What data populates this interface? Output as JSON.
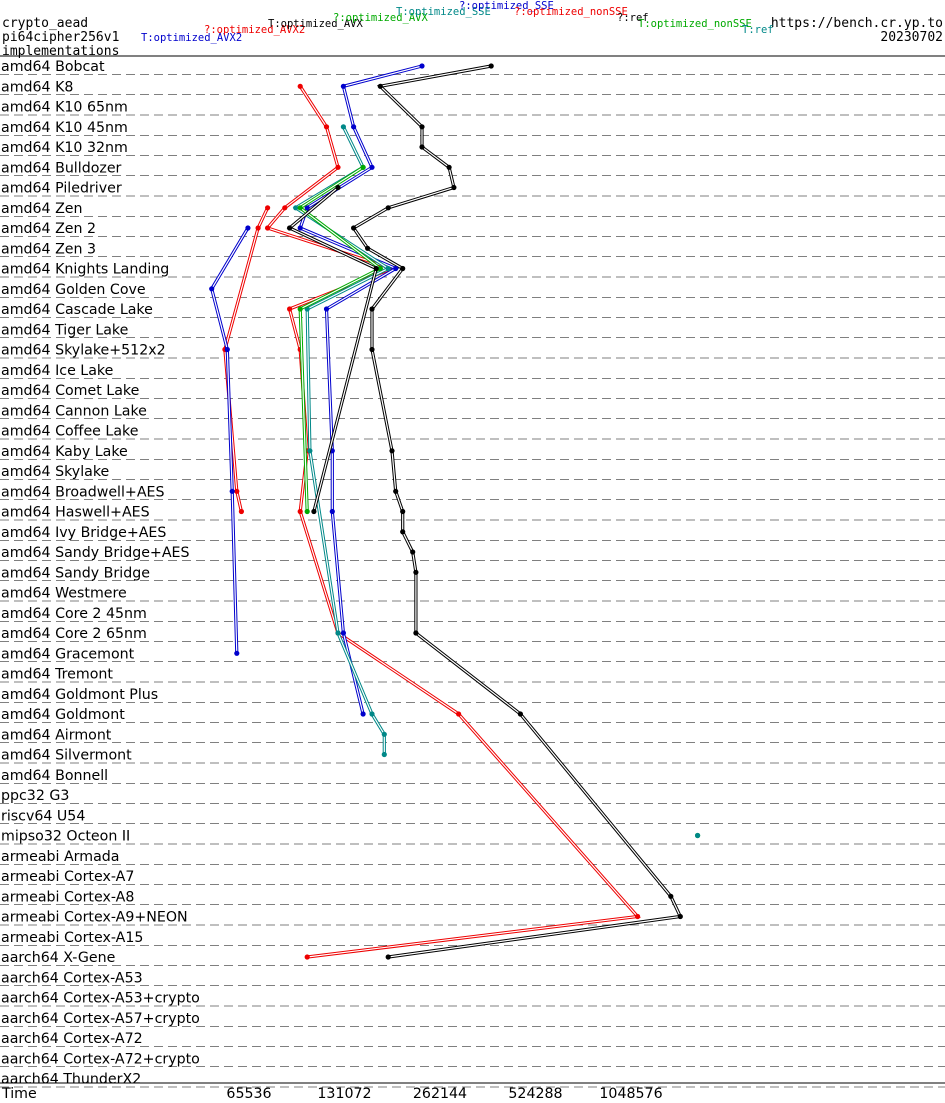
{
  "header": {
    "lines": [
      "crypto_aead",
      "pi64cipher256v1",
      "implementations"
    ],
    "url": "https://bench.cr.yp.to",
    "date": "20230702"
  },
  "legend": [
    {
      "label": "T:optimized_AVX2",
      "color": "#0000cc"
    },
    {
      "label": "?:optimized_AVX2",
      "color": "#ee0000"
    },
    {
      "label": "T:optimized_AVX",
      "color": "#000000"
    },
    {
      "label": "?:optimized_AVX",
      "color": "#00aa00"
    },
    {
      "label": "T:optimized_SSE",
      "color": "#008888"
    },
    {
      "label": "?:optimized_SSE",
      "color": "#0000cc"
    },
    {
      "label": "?:optimized_nonSSE",
      "color": "#ee0000"
    },
    {
      "label": "?:ref",
      "color": "#000000"
    },
    {
      "label": "T:optimized_nonSSE",
      "color": "#00aa00"
    },
    {
      "label": "T:ref",
      "color": "#008888"
    }
  ],
  "chart_data": {
    "type": "line",
    "orientation": "horizontal categories, log-scale time axis",
    "xlabel": "Time",
    "x_scale": "log2",
    "x_ticks": [
      65536,
      131072,
      262144,
      524288,
      1048576
    ],
    "categories": [
      "amd64 Bobcat",
      "amd64 K8",
      "amd64 K10 65nm",
      "amd64 K10 45nm",
      "amd64 K10 32nm",
      "amd64 Bulldozer",
      "amd64 Piledriver",
      "amd64 Zen",
      "amd64 Zen 2",
      "amd64 Zen 3",
      "amd64 Knights Landing",
      "amd64 Golden Cove",
      "amd64 Cascade Lake",
      "amd64 Tiger Lake",
      "amd64 Skylake+512x2",
      "amd64 Ice Lake",
      "amd64 Comet Lake",
      "amd64 Cannon Lake",
      "amd64 Coffee Lake",
      "amd64 Kaby Lake",
      "amd64 Skylake",
      "amd64 Broadwell+AES",
      "amd64 Haswell+AES",
      "amd64 Ivy Bridge+AES",
      "amd64 Sandy Bridge+AES",
      "amd64 Sandy Bridge",
      "amd64 Westmere",
      "amd64 Core 2 45nm",
      "amd64 Core 2 65nm",
      "amd64 Gracemont",
      "amd64 Tremont",
      "amd64 Goldmont Plus",
      "amd64 Goldmont",
      "amd64 Airmont",
      "amd64 Silvermont",
      "amd64 Bonnell",
      "ppc32 G3",
      "riscv64 U54",
      "mipso32 Octeon II",
      "armeabi Armada",
      "armeabi Cortex-A7",
      "armeabi Cortex-A8",
      "armeabi Cortex-A9+NEON",
      "armeabi Cortex-A15",
      "aarch64 X-Gene",
      "aarch64 Cortex-A53",
      "aarch64 Cortex-A53+crypto",
      "aarch64 Cortex-A57+crypto",
      "aarch64 Cortex-A72",
      "aarch64 Cortex-A72+crypto",
      "aarch64 ThunderX2"
    ],
    "series": [
      {
        "name": "?:ref",
        "color": "#000000",
        "points": [
          [
            "amd64 Bobcat",
            380000
          ],
          [
            "amd64 K8",
            170000
          ],
          [
            "amd64 K10 45nm",
            230000
          ],
          [
            "amd64 K10 32nm",
            230000
          ],
          [
            "amd64 Bulldozer",
            280000
          ],
          [
            "amd64 Piledriver",
            290000
          ],
          [
            "amd64 Zen",
            180000
          ],
          [
            "amd64 Zen 2",
            140000
          ],
          [
            "amd64 Zen 3",
            155000
          ],
          [
            "amd64 Knights Landing",
            200000
          ],
          [
            "amd64 Cascade Lake",
            160000
          ],
          [
            "amd64 Skylake+512x2",
            160000
          ],
          [
            "amd64 Kaby Lake",
            185000
          ],
          [
            "amd64 Broadwell+AES",
            190000
          ],
          [
            "amd64 Haswell+AES",
            200000
          ],
          [
            "amd64 Ivy Bridge+AES",
            200000
          ],
          [
            "amd64 Sandy Bridge+AES",
            215000
          ],
          [
            "amd64 Sandy Bridge",
            220000
          ],
          [
            "amd64 Core 2 65nm",
            220000
          ],
          [
            "amd64 Goldmont",
            470000
          ],
          [
            "armeabi Cortex-A8",
            1400000
          ],
          [
            "armeabi Cortex-A9+NEON",
            1500000
          ],
          [
            "aarch64 X-Gene",
            180000
          ]
        ]
      },
      {
        "name": "?:optimized_nonSSE",
        "color": "#ee0000",
        "points": [
          [
            "amd64 K8",
            95000
          ],
          [
            "amd64 K10 45nm",
            115000
          ],
          [
            "amd64 Bulldozer",
            125000
          ],
          [
            "amd64 Zen",
            85000
          ],
          [
            "amd64 Zen 2",
            75000
          ],
          [
            "amd64 Knights Landing",
            185000
          ],
          [
            "amd64 Cascade Lake",
            88000
          ],
          [
            "amd64 Skylake+512x2",
            95000
          ],
          [
            "amd64 Kaby Lake",
            100000
          ],
          [
            "amd64 Haswell+AES",
            95000
          ],
          [
            "amd64 Core 2 65nm",
            125000
          ],
          [
            "amd64 Goldmont",
            300000
          ],
          [
            "armeabi Cortex-A9+NEON",
            1100000
          ],
          [
            "aarch64 X-Gene",
            100000
          ]
        ]
      },
      {
        "name": "?:optimized_SSE",
        "color": "#0000cc",
        "points": [
          [
            "amd64 Bobcat",
            230000
          ],
          [
            "amd64 K8",
            130000
          ],
          [
            "amd64 K10 45nm",
            140000
          ],
          [
            "amd64 Bulldozer",
            160000
          ],
          [
            "amd64 Zen",
            100000
          ],
          [
            "amd64 Zen 2",
            95000
          ],
          [
            "amd64 Knights Landing",
            190000
          ],
          [
            "amd64 Cascade Lake",
            115000
          ],
          [
            "amd64 Kaby Lake",
            120000
          ],
          [
            "amd64 Haswell+AES",
            120000
          ],
          [
            "amd64 Core 2 65nm",
            130000
          ],
          [
            "amd64 Goldmont",
            150000
          ]
        ]
      },
      {
        "name": "T:optimized_SSE",
        "color": "#008888",
        "points": [
          [
            "amd64 K10 45nm",
            130000
          ],
          [
            "amd64 Bulldozer",
            150000
          ],
          [
            "amd64 Zen",
            92000
          ],
          [
            "amd64 Knights Landing",
            180000
          ],
          [
            "amd64 Cascade Lake",
            100000
          ],
          [
            "amd64 Kaby Lake",
            102000
          ],
          [
            "amd64 Core 2 65nm",
            125000
          ],
          [
            "amd64 Goldmont",
            160000
          ],
          [
            "amd64 Airmont",
            175000
          ],
          [
            "amd64 Silvermont",
            175000
          ]
        ]
      },
      {
        "name": "?:optimized_AVX",
        "color": "#00aa00",
        "points": [
          [
            "amd64 Bulldozer",
            150000
          ],
          [
            "amd64 Zen",
            95000
          ],
          [
            "amd64 Knights Landing",
            170000
          ],
          [
            "amd64 Cascade Lake",
            95000
          ],
          [
            "amd64 Haswell+AES",
            100000
          ]
        ]
      },
      {
        "name": "T:optimized_AVX",
        "color": "#000000",
        "points": [
          [
            "amd64 Piledriver",
            125000
          ],
          [
            "amd64 Zen 2",
            88000
          ],
          [
            "amd64 Knights Landing",
            165000
          ],
          [
            "amd64 Haswell+AES",
            105000
          ]
        ]
      },
      {
        "name": "?:optimized_AVX2",
        "color": "#ee0000",
        "points": [
          [
            "amd64 Zen",
            75000
          ],
          [
            "amd64 Zen 2",
            70000
          ],
          [
            "amd64 Skylake+512x2",
            55000
          ],
          [
            "amd64 Broadwell+AES",
            60000
          ],
          [
            "amd64 Haswell+AES",
            62000
          ]
        ]
      },
      {
        "name": "T:optimized_AVX2",
        "color": "#0000cc",
        "points": [
          [
            "amd64 Zen 2",
            65000
          ],
          [
            "amd64 Golden Cove",
            50000
          ],
          [
            "amd64 Skylake+512x2",
            56000
          ],
          [
            "amd64 Broadwell+AES",
            58000
          ],
          [
            "amd64 Gracemont",
            60000
          ]
        ]
      },
      {
        "name": "T:optimized_nonSSE",
        "color": "#00aa00",
        "points": [
          [
            "mipso32 Octeon II",
            1700000
          ]
        ]
      },
      {
        "name": "T:ref",
        "color": "#008888",
        "points": [
          [
            "mipso32 Octeon II",
            1700000
          ]
        ]
      }
    ]
  }
}
